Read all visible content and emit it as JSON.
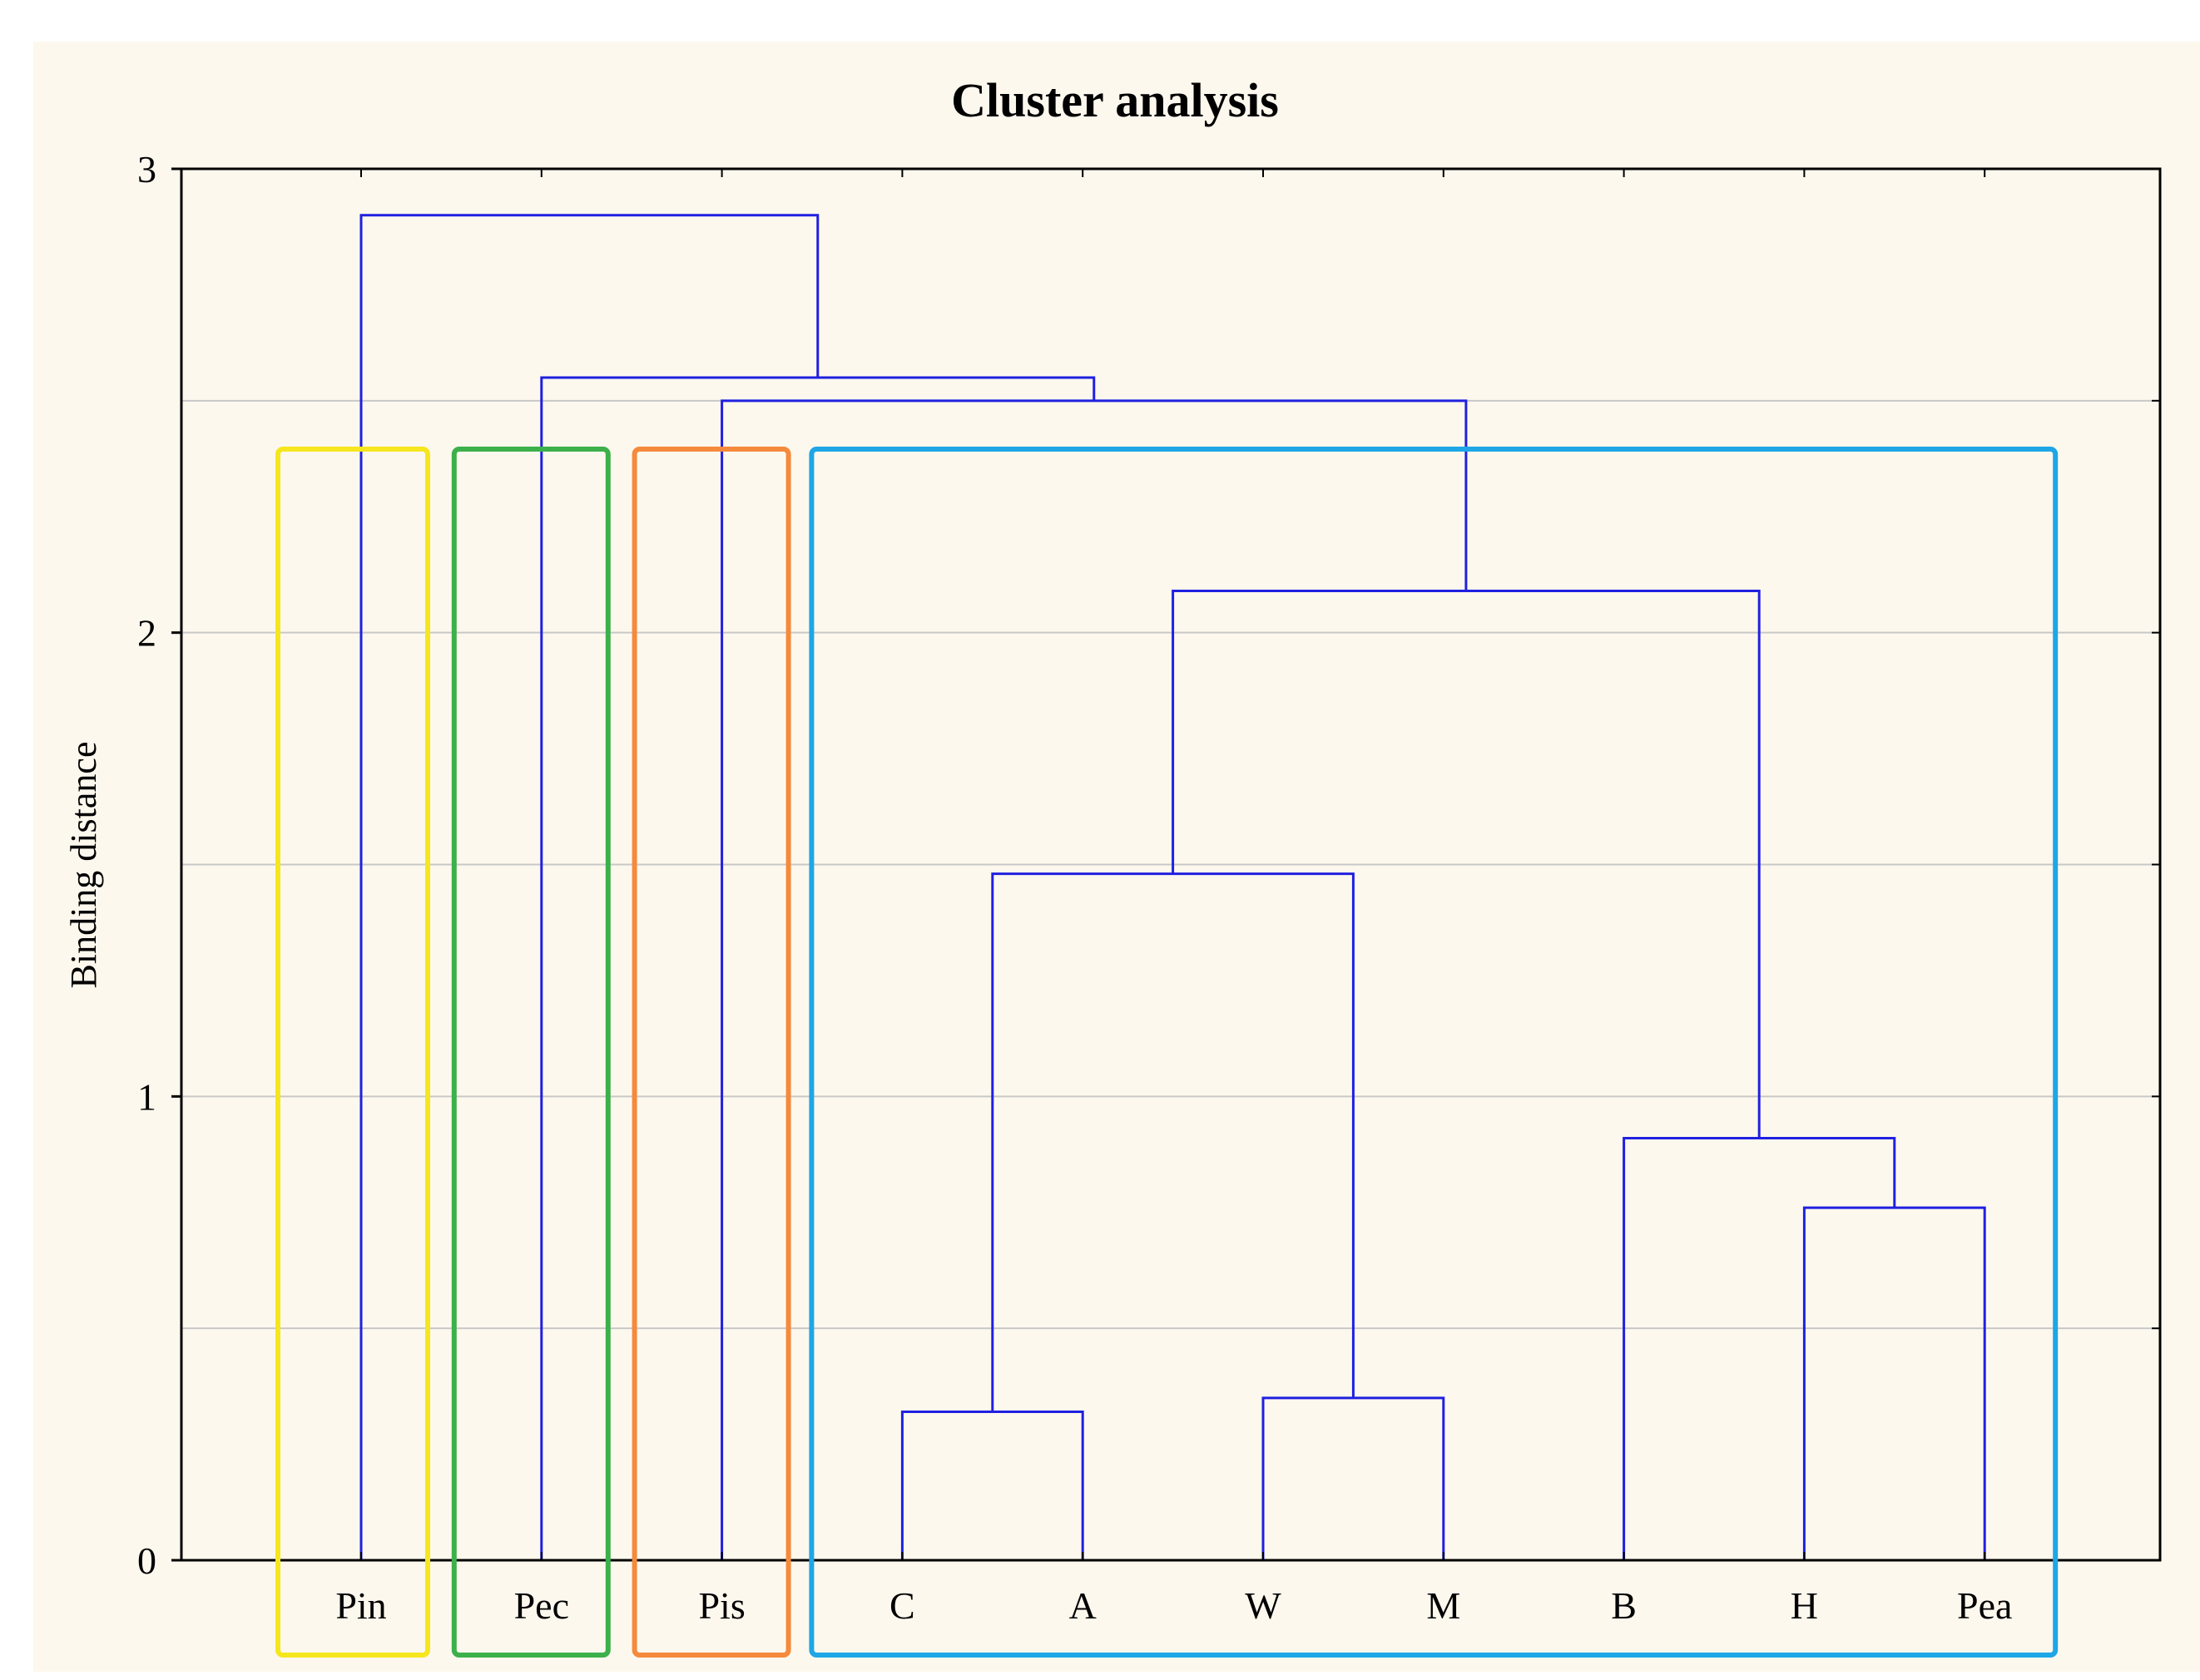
{
  "chart_data": {
    "type": "dendrogram",
    "title": "Cluster analysis",
    "xlabel": "",
    "ylabel": "Binding distance",
    "ylim": [
      0,
      3
    ],
    "yticks": [
      0,
      1,
      2,
      3
    ],
    "grid_y": [
      0.5,
      1,
      1.5,
      2,
      2.5
    ],
    "leaves": [
      "Pin",
      "Pec",
      "Pis",
      "C",
      "A",
      "W",
      "M",
      "B",
      "H",
      "Pea"
    ],
    "merges": [
      {
        "left": "C",
        "right": "A",
        "height": 0.32
      },
      {
        "left": "W",
        "right": "M",
        "height": 0.35
      },
      {
        "left": "H",
        "right": "Pea",
        "height": 0.76
      },
      {
        "left": "B",
        "right": "H+Pea",
        "height": 0.91
      },
      {
        "left": "C+A",
        "right": "W+M",
        "height": 1.48
      },
      {
        "left": "C+A+W+M",
        "right": "B+H+Pea",
        "height": 2.09
      },
      {
        "left": "Pis",
        "right": "C+A+W+M+B+H+Pea",
        "height": 2.5
      },
      {
        "left": "Pec",
        "right": "Pis+C+A+W+M+B+H+Pea",
        "height": 2.55
      },
      {
        "left": "Pin",
        "right": "Pec+Pis+C+A+W+M+B+H+Pea",
        "height": 2.9
      }
    ],
    "cluster_groups": [
      {
        "members": [
          "Pin"
        ],
        "color": "#f5e61e"
      },
      {
        "members": [
          "Pec"
        ],
        "color": "#3cb04a"
      },
      {
        "members": [
          "Pis"
        ],
        "color": "#f58a3c"
      },
      {
        "members": [
          "C",
          "A",
          "W",
          "M",
          "B",
          "H",
          "Pea"
        ],
        "color": "#1ea6e6"
      }
    ],
    "link_color": "#2020e0",
    "background": "#fdf8ee"
  }
}
